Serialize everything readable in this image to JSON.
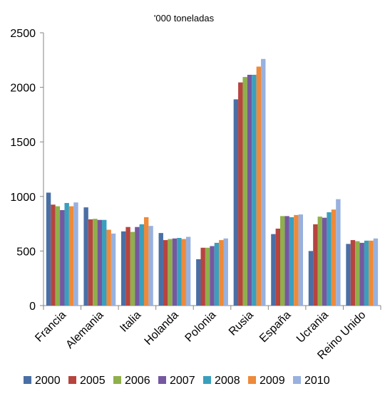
{
  "chart_data": {
    "type": "bar",
    "title": "'000 toneladas",
    "categories": [
      "Francia",
      "Alemania",
      "Italia",
      "Holanda",
      "Polonia",
      "Rusia",
      "España",
      "Ucrania",
      "Reino Unido"
    ],
    "ylim": [
      0,
      2500
    ],
    "yticks": [
      0,
      500,
      1000,
      1500,
      2000,
      2500
    ],
    "grid": false,
    "legend_position": "bottom",
    "series": [
      {
        "name": "2000",
        "color": "#4a6fa5",
        "values": [
          1035,
          900,
          680,
          665,
          425,
          1890,
          655,
          500,
          565
        ]
      },
      {
        "name": "2005",
        "color": "#b7443f",
        "values": [
          925,
          790,
          720,
          600,
          530,
          2045,
          705,
          745,
          600
        ]
      },
      {
        "name": "2006",
        "color": "#8fb04a",
        "values": [
          910,
          795,
          675,
          610,
          530,
          2095,
          820,
          815,
          590
        ]
      },
      {
        "name": "2007",
        "color": "#7558a0",
        "values": [
          875,
          785,
          720,
          615,
          545,
          2115,
          820,
          805,
          575
        ]
      },
      {
        "name": "2008",
        "color": "#3a9fbd",
        "values": [
          940,
          785,
          745,
          620,
          575,
          2115,
          810,
          855,
          595
        ]
      },
      {
        "name": "2009",
        "color": "#ee8a3a",
        "values": [
          910,
          695,
          810,
          610,
          600,
          2190,
          830,
          880,
          595
        ]
      },
      {
        "name": "2010",
        "color": "#98b1de",
        "values": [
          945,
          660,
          730,
          630,
          615,
          2260,
          835,
          975,
          615
        ]
      }
    ]
  }
}
